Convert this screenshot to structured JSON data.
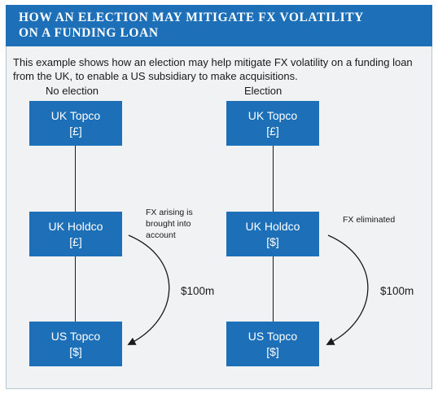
{
  "title": {
    "line1": "HOW AN ELECTION MAY MITIGATE FX VOLATILITY",
    "line2": "ON A FUNDING LOAN"
  },
  "intro": "This example shows how an election may help mitigate FX volatility on a funding loan from the UK, to enable a US subsidiary to make acquisitions.",
  "columns": [
    {
      "label": "No election",
      "topco": {
        "name": "UK Topco",
        "currency": "[£]"
      },
      "holdco": {
        "name": "UK Holdco",
        "currency": "[£]"
      },
      "us_topco": {
        "name": "US Topco",
        "currency": "[$]"
      },
      "note": [
        "FX arising is",
        "brought into",
        "account"
      ],
      "amount": "$100m"
    },
    {
      "label": "Election",
      "topco": {
        "name": "UK Topco",
        "currency": "[£]"
      },
      "holdco": {
        "name": "UK Holdco",
        "currency": "[$]"
      },
      "us_topco": {
        "name": "US Topco",
        "currency": "[$]"
      },
      "note": [
        "FX eliminated"
      ],
      "amount": "$100m"
    }
  ],
  "colors": {
    "accent": "#1d70b8",
    "background": "#f0f2f4",
    "text": "#1a1a1a"
  }
}
